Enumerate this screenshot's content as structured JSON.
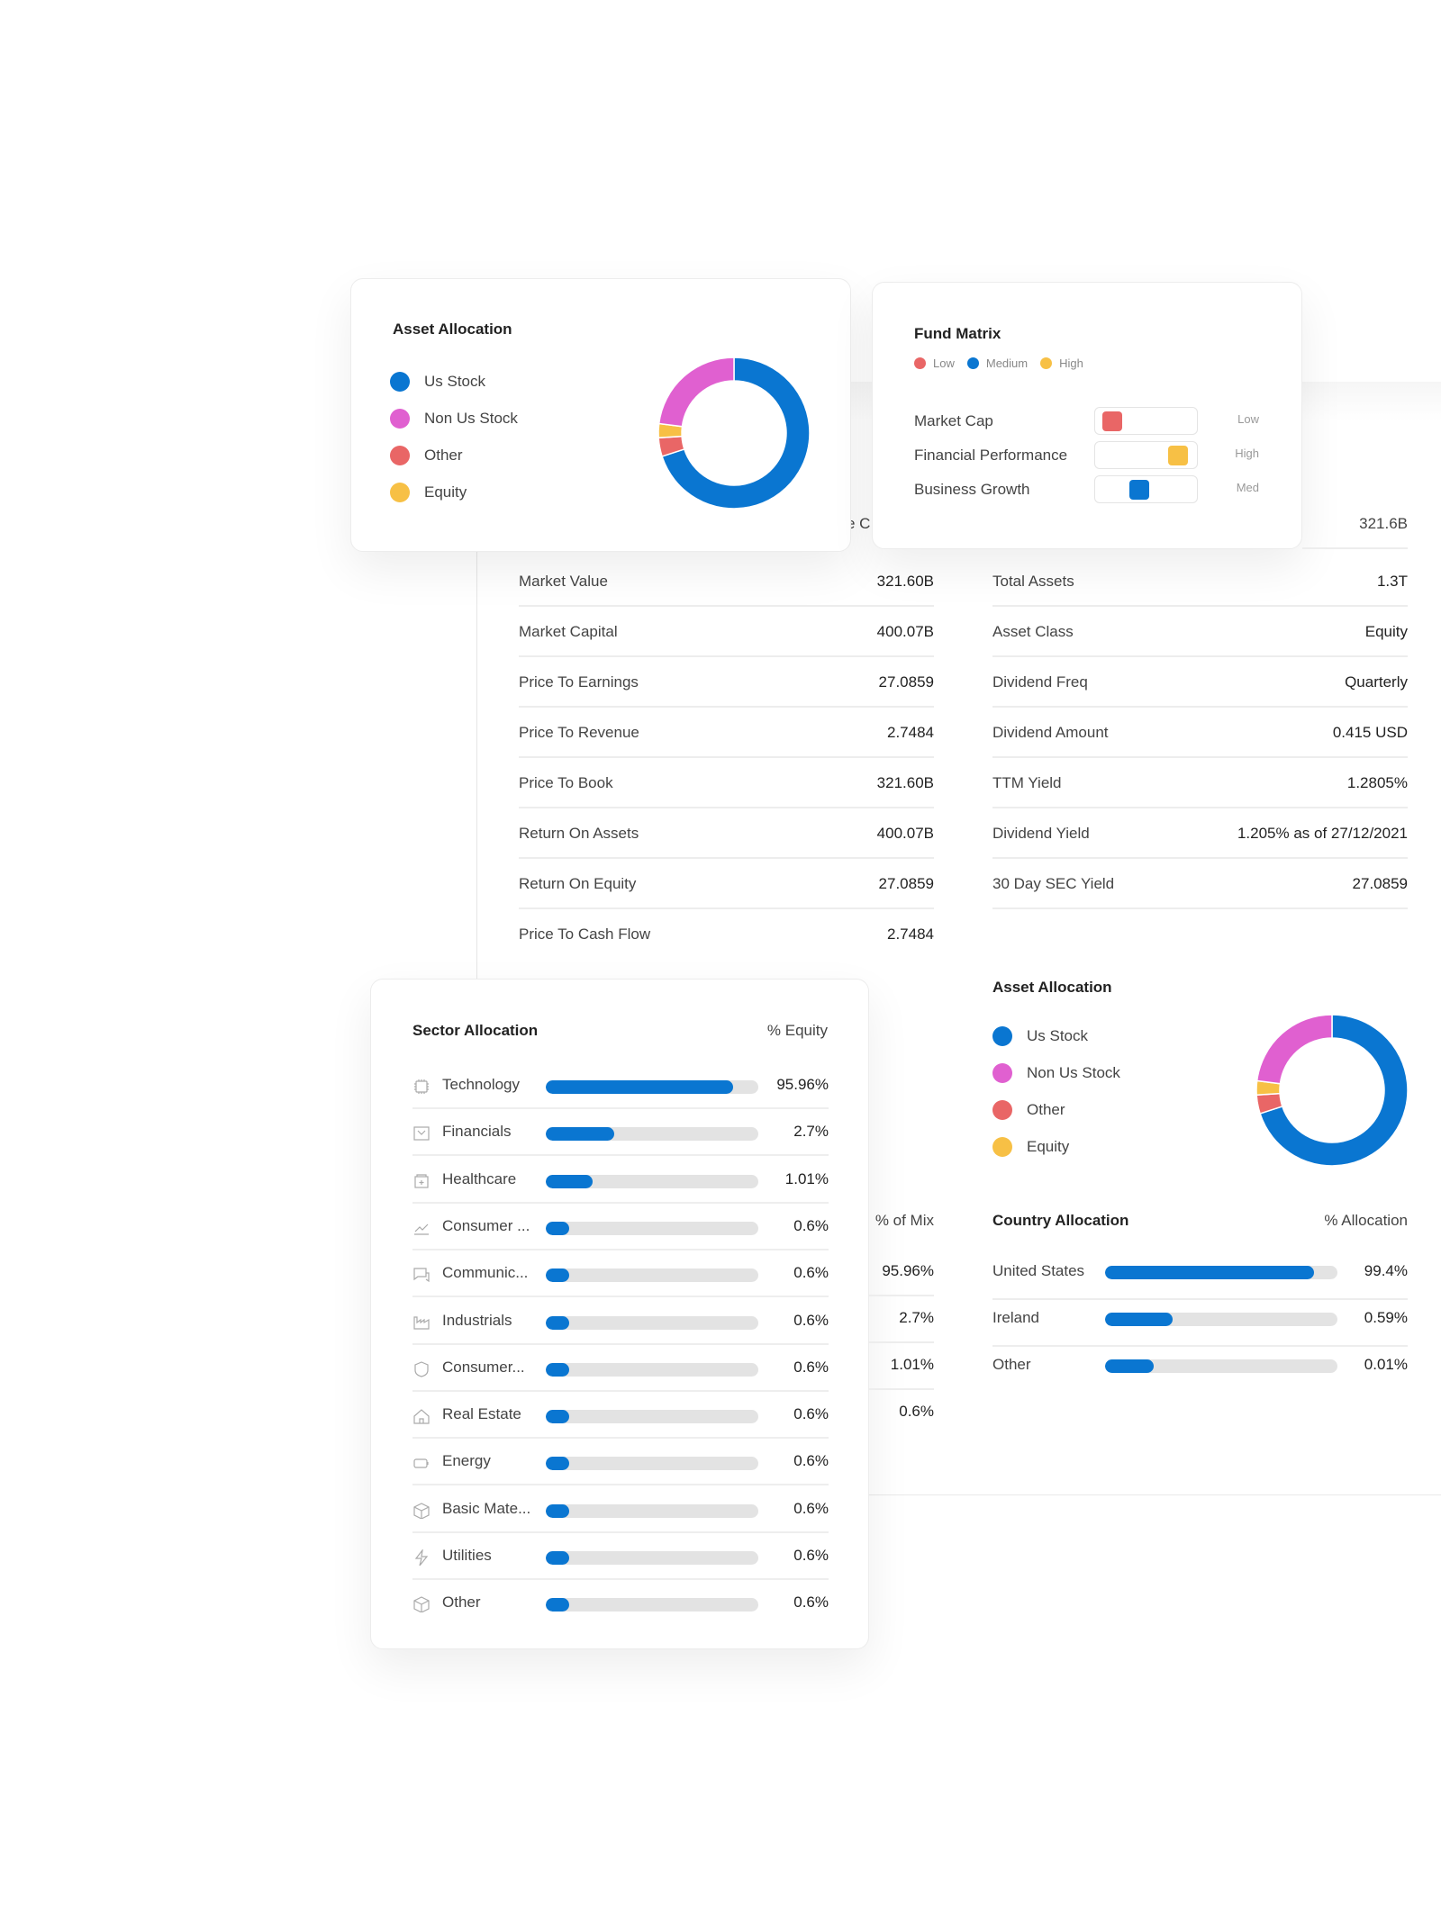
{
  "colors": {
    "us_stock": "#0a76d1",
    "non_us_stock": "#e060d0",
    "other": "#e96666",
    "equity": "#f7c045",
    "bar": "#0a76d1",
    "track": "#e3e3e3"
  },
  "asset_allocation": {
    "title": "Asset Allocation",
    "legend": [
      "Us Stock",
      "Non Us Stock",
      "Other",
      "Equity"
    ]
  },
  "chart_data": {
    "type": "pie",
    "title": "Asset Allocation",
    "categories": [
      "Us Stock",
      "Other",
      "Equity",
      "Non Us Stock"
    ],
    "values": [
      70,
      4,
      3,
      23
    ]
  },
  "fund_matrix": {
    "title": "Fund Matrix",
    "legend": [
      "Low",
      "Medium",
      "High"
    ],
    "rows": [
      {
        "label": "Market Cap",
        "level": "Low",
        "position": 0.05
      },
      {
        "label": "Financial Performance",
        "level": "High",
        "position": 0.9
      },
      {
        "label": "Business Growth",
        "level": "Med",
        "position": 0.4
      }
    ]
  },
  "partial_label": "e C",
  "top_right_value": "321.6B",
  "left_table": [
    {
      "label": "Market Value",
      "value": "321.60B"
    },
    {
      "label": "Market Capital",
      "value": "400.07B"
    },
    {
      "label": "Price To Earnings",
      "value": "27.0859"
    },
    {
      "label": "Price To Revenue",
      "value": "2.7484"
    },
    {
      "label": "Price To Book",
      "value": "321.60B"
    },
    {
      "label": "Return On Assets",
      "value": "400.07B"
    },
    {
      "label": "Return On Equity",
      "value": "27.0859"
    },
    {
      "label": "Price To Cash Flow",
      "value": "2.7484"
    }
  ],
  "right_table": [
    {
      "label": "Total Assets",
      "value": "1.3T"
    },
    {
      "label": "Asset Class",
      "value": "Equity"
    },
    {
      "label": "Dividend Freq",
      "value": "Quarterly"
    },
    {
      "label": "Dividend Amount",
      "value": "0.415 USD"
    },
    {
      "label": "TTM Yield",
      "value": "1.2805%"
    },
    {
      "label": "Dividend Yield",
      "value": "1.205% as of 27/12/2021"
    },
    {
      "label": "30 Day SEC Yield",
      "value": "27.0859"
    }
  ],
  "mix": {
    "header": "% of Mix",
    "values": [
      "95.96%",
      "2.7%",
      "1.01%",
      "0.6%"
    ]
  },
  "sector": {
    "title": "Sector Allocation",
    "header": "% Equity",
    "rows": [
      {
        "label": "Technology",
        "value": "95.96%",
        "fill": 88,
        "icon": "chip-icon"
      },
      {
        "label": "Financials",
        "value": "2.7%",
        "fill": 32,
        "icon": "finance-icon"
      },
      {
        "label": "Healthcare",
        "value": "1.01%",
        "fill": 22,
        "icon": "healthcare-icon"
      },
      {
        "label": "Consumer ...",
        "value": "0.6%",
        "fill": 11,
        "icon": "chart-line-icon"
      },
      {
        "label": "Communic...",
        "value": "0.6%",
        "fill": 11,
        "icon": "chat-icon"
      },
      {
        "label": "Industrials",
        "value": "0.6%",
        "fill": 11,
        "icon": "factory-icon"
      },
      {
        "label": "Consumer...",
        "value": "0.6%",
        "fill": 11,
        "icon": "shield-icon"
      },
      {
        "label": "Real Estate",
        "value": "0.6%",
        "fill": 11,
        "icon": "house-icon"
      },
      {
        "label": "Energy",
        "value": "0.6%",
        "fill": 11,
        "icon": "battery-icon"
      },
      {
        "label": "Basic Mate...",
        "value": "0.6%",
        "fill": 11,
        "icon": "cube-icon"
      },
      {
        "label": "Utilities",
        "value": "0.6%",
        "fill": 11,
        "icon": "lightning-icon"
      },
      {
        "label": "Other",
        "value": "0.6%",
        "fill": 11,
        "icon": "cube-icon"
      }
    ]
  },
  "country": {
    "title": "Country Allocation",
    "header": "% Allocation",
    "rows": [
      {
        "label": "United States",
        "value": "99.4%",
        "fill": 90
      },
      {
        "label": "Ireland",
        "value": "0.59%",
        "fill": 29
      },
      {
        "label": "Other",
        "value": "0.01%",
        "fill": 21
      }
    ]
  }
}
